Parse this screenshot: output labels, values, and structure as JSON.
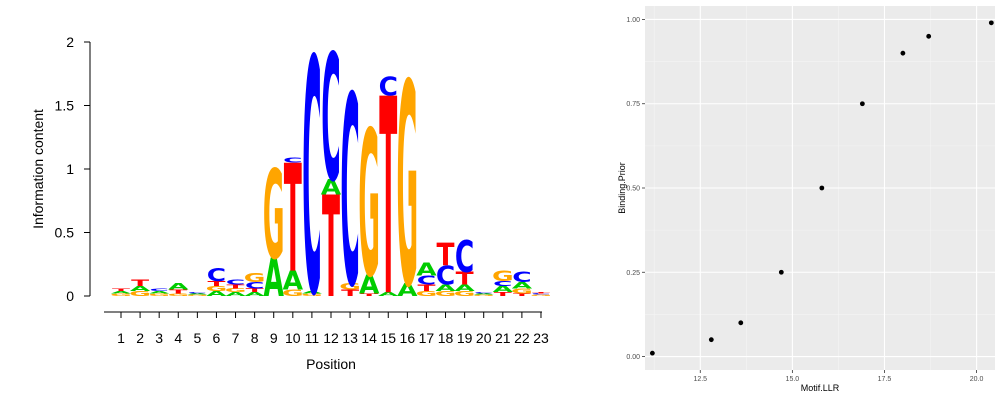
{
  "chart_data": [
    {
      "type": "sequence-logo",
      "xlabel": "Position",
      "ylabel": "Information content",
      "ylim": [
        0,
        2
      ],
      "yticks": [
        "0",
        "0.5",
        "1",
        "1.5",
        "2"
      ],
      "categories": [
        "1",
        "2",
        "3",
        "4",
        "5",
        "6",
        "7",
        "8",
        "9",
        "10",
        "11",
        "12",
        "13",
        "14",
        "15",
        "16",
        "17",
        "18",
        "19",
        "20",
        "21",
        "22",
        "23"
      ],
      "colors": {
        "A": "#00cc00",
        "C": "#0000ff",
        "G": "#ffa500",
        "T": "#ff0000"
      },
      "stacks": [
        [
          {
            "letter": "G",
            "height": 0.02
          },
          {
            "letter": "A",
            "height": 0.02
          },
          {
            "letter": "T",
            "height": 0.02
          }
        ],
        [
          {
            "letter": "G",
            "height": 0.04
          },
          {
            "letter": "A",
            "height": 0.04
          },
          {
            "letter": "T",
            "height": 0.05
          }
        ],
        [
          {
            "letter": "G",
            "height": 0.02
          },
          {
            "letter": "A",
            "height": 0.02
          },
          {
            "letter": "C",
            "height": 0.02
          }
        ],
        [
          {
            "letter": "G",
            "height": 0.02
          },
          {
            "letter": "T",
            "height": 0.03
          },
          {
            "letter": "A",
            "height": 0.05
          }
        ],
        [
          {
            "letter": "G",
            "height": 0.01
          },
          {
            "letter": "A",
            "height": 0.01
          },
          {
            "letter": "C",
            "height": 0.01
          }
        ],
        [
          {
            "letter": "A",
            "height": 0.04
          },
          {
            "letter": "G",
            "height": 0.04
          },
          {
            "letter": "T",
            "height": 0.04
          },
          {
            "letter": "C",
            "height": 0.1
          }
        ],
        [
          {
            "letter": "A",
            "height": 0.03
          },
          {
            "letter": "G",
            "height": 0.03
          },
          {
            "letter": "T",
            "height": 0.03
          },
          {
            "letter": "C",
            "height": 0.04
          }
        ],
        [
          {
            "letter": "A",
            "height": 0.03
          },
          {
            "letter": "T",
            "height": 0.03
          },
          {
            "letter": "C",
            "height": 0.05
          },
          {
            "letter": "G",
            "height": 0.07
          }
        ],
        [
          {
            "letter": "A",
            "height": 0.3
          },
          {
            "letter": "G",
            "height": 0.7
          }
        ],
        [
          {
            "letter": "G",
            "height": 0.05
          },
          {
            "letter": "A",
            "height": 0.15
          },
          {
            "letter": "T",
            "height": 0.85
          },
          {
            "letter": "C",
            "height": 0.04
          }
        ],
        [
          {
            "letter": "G",
            "height": 0.02
          },
          {
            "letter": "A",
            "height": 0.02
          },
          {
            "letter": "C",
            "height": 1.85
          }
        ],
        [
          {
            "letter": "T",
            "height": 0.8
          },
          {
            "letter": "A",
            "height": 0.12
          },
          {
            "letter": "C",
            "height": 1.0
          }
        ],
        [
          {
            "letter": "T",
            "height": 0.05
          },
          {
            "letter": "G",
            "height": 0.05
          },
          {
            "letter": "C",
            "height": 1.5
          }
        ],
        [
          {
            "letter": "T",
            "height": 0.02
          },
          {
            "letter": "A",
            "height": 0.15
          },
          {
            "letter": "G",
            "height": 1.15
          }
        ],
        [
          {
            "letter": "A",
            "height": 0.03
          },
          {
            "letter": "T",
            "height": 1.55
          },
          {
            "letter": "C",
            "height": 0.15
          }
        ],
        [
          {
            "letter": "A",
            "height": 0.1
          },
          {
            "letter": "G",
            "height": 1.6
          }
        ],
        [
          {
            "letter": "G",
            "height": 0.04
          },
          {
            "letter": "T",
            "height": 0.05
          },
          {
            "letter": "C",
            "height": 0.07
          },
          {
            "letter": "A",
            "height": 0.1
          }
        ],
        [
          {
            "letter": "G",
            "height": 0.04
          },
          {
            "letter": "A",
            "height": 0.05
          },
          {
            "letter": "C",
            "height": 0.15
          },
          {
            "letter": "T",
            "height": 0.18
          }
        ],
        [
          {
            "letter": "G",
            "height": 0.04
          },
          {
            "letter": "A",
            "height": 0.05
          },
          {
            "letter": "T",
            "height": 0.1
          },
          {
            "letter": "C",
            "height": 0.25
          }
        ],
        [
          {
            "letter": "G",
            "height": 0.01
          },
          {
            "letter": "A",
            "height": 0.01
          },
          {
            "letter": "C",
            "height": 0.01
          }
        ],
        [
          {
            "letter": "T",
            "height": 0.03
          },
          {
            "letter": "A",
            "height": 0.05
          },
          {
            "letter": "C",
            "height": 0.04
          },
          {
            "letter": "G",
            "height": 0.08
          }
        ],
        [
          {
            "letter": "T",
            "height": 0.02
          },
          {
            "letter": "G",
            "height": 0.04
          },
          {
            "letter": "A",
            "height": 0.05
          },
          {
            "letter": "C",
            "height": 0.08
          }
        ],
        [
          {
            "letter": "G",
            "height": 0.01
          },
          {
            "letter": "C",
            "height": 0.01
          },
          {
            "letter": "T",
            "height": 0.01
          }
        ]
      ]
    },
    {
      "type": "scatter",
      "xlabel": "Motif.LLR",
      "ylabel": "Binding.Prior",
      "xlim": [
        11,
        20.5
      ],
      "ylim": [
        -0.04,
        1.04
      ],
      "xticks": [
        12.5,
        15.0,
        17.5,
        20.0
      ],
      "xtick_labels": [
        "12.5",
        "15.0",
        "17.5",
        "20.0"
      ],
      "yticks": [
        0.0,
        0.25,
        0.5,
        0.75,
        1.0
      ],
      "ytick_labels": [
        "0.00",
        "0.25",
        "0.50",
        "0.75",
        "1.00"
      ],
      "grid": true,
      "panel_background": "#ebebeb",
      "point_color": "#000000",
      "x": [
        11.2,
        12.8,
        13.6,
        14.7,
        15.8,
        16.9,
        18.0,
        18.7,
        20.4
      ],
      "y": [
        0.01,
        0.05,
        0.1,
        0.25,
        0.5,
        0.75,
        0.9,
        0.95,
        0.99
      ]
    }
  ]
}
